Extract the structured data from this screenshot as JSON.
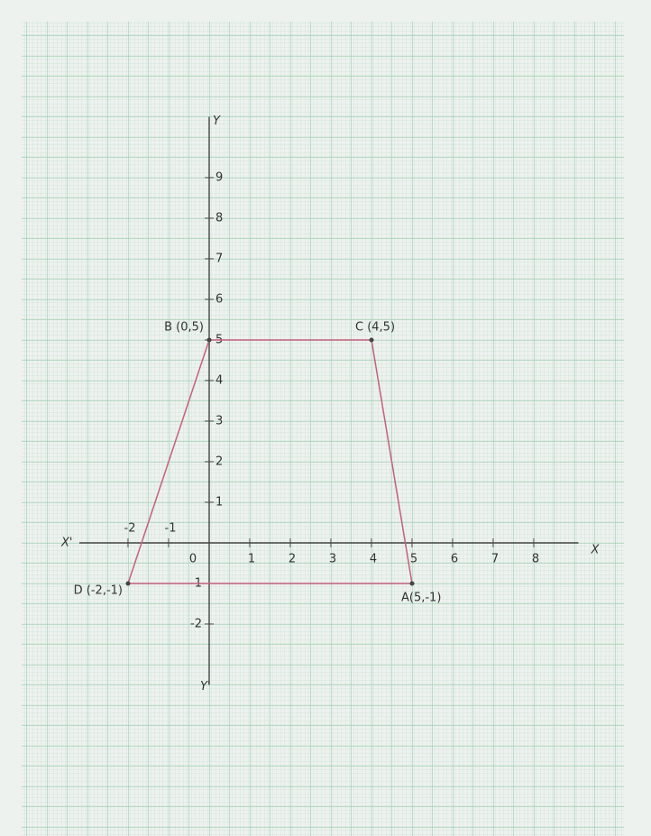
{
  "chart_data": {
    "type": "polygon",
    "x": [
      0,
      4,
      5,
      -2
    ],
    "y": [
      5,
      5,
      -1,
      -1
    ],
    "point_labels": [
      "B (0,5)",
      "C (4,5)",
      "A(5,-1)",
      "D (-2,-1)"
    ],
    "color": "#c4607c",
    "xlim": [
      -3.2,
      9.1
    ],
    "ylim": [
      -3.5,
      10.5
    ],
    "xticks": [
      -2,
      -1,
      0,
      1,
      2,
      3,
      4,
      5,
      6,
      7,
      8
    ],
    "yticks": [
      -2,
      -1,
      1,
      2,
      3,
      4,
      5,
      6,
      7,
      8,
      9
    ],
    "x_label_left": "X'",
    "x_label": "X",
    "y_label": "Y",
    "y_label_bottom": "Y'"
  }
}
